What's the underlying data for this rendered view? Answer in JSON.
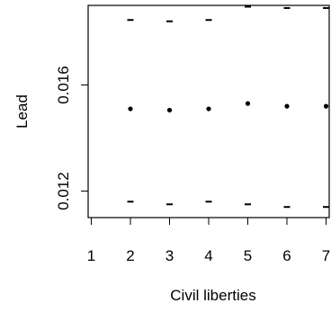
{
  "chart_data": {
    "type": "scatter",
    "xlabel": "Civil liberties",
    "ylabel": "Lead",
    "title": "",
    "xlim": [
      0.92,
      7.08
    ],
    "ylim": [
      0.011,
      0.019
    ],
    "x_ticks": [
      1,
      2,
      3,
      4,
      5,
      6,
      7
    ],
    "x_tick_labels": [
      "1",
      "2",
      "3",
      "4",
      "5",
      "6",
      "7"
    ],
    "y_ticks": [
      0.012,
      0.016
    ],
    "y_tick_labels": [
      "0.012",
      "0.016"
    ],
    "grid": false,
    "series": [
      {
        "role": "estimate",
        "x": [
          2,
          3,
          4,
          5,
          6,
          7
        ],
        "y": [
          0.0151,
          0.01505,
          0.0151,
          0.0153,
          0.0152,
          0.0152
        ]
      },
      {
        "role": "upper",
        "x": [
          2,
          3,
          4,
          5,
          6,
          7
        ],
        "y": [
          0.01845,
          0.0184,
          0.01845,
          0.01895,
          0.0189,
          0.0189
        ]
      },
      {
        "role": "lower",
        "x": [
          2,
          3,
          4,
          5,
          6,
          7
        ],
        "y": [
          0.0116,
          0.0115,
          0.0116,
          0.0115,
          0.0114,
          0.0114
        ]
      }
    ]
  }
}
